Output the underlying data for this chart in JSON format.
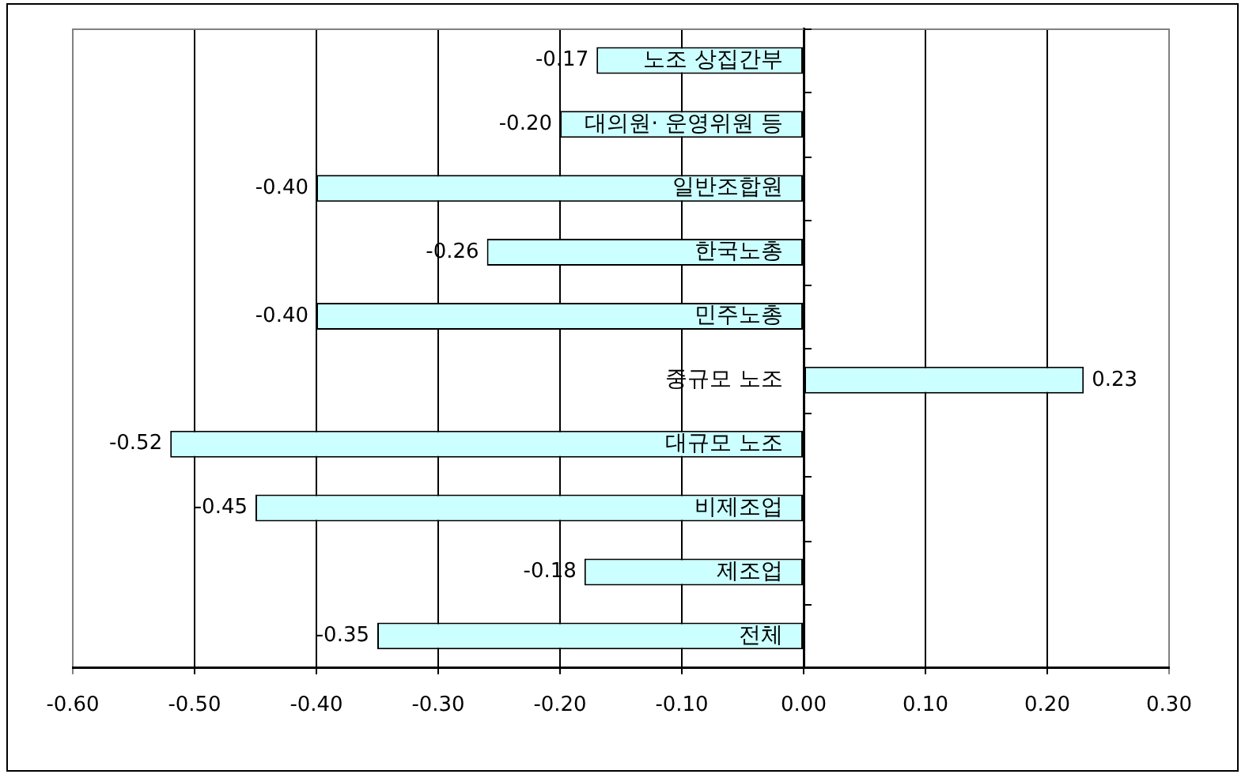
{
  "chart_data": {
    "type": "bar",
    "orientation": "horizontal",
    "categories": [
      "노조 상집간부",
      "대의원· 운영위원 등",
      "일반조합원",
      "한국노총",
      "민주노총",
      "중규모 노조",
      "대규모 노조",
      "비제조업",
      "제조업",
      "전체"
    ],
    "values": [
      -0.17,
      -0.2,
      -0.4,
      -0.26,
      -0.4,
      0.23,
      -0.52,
      -0.45,
      -0.18,
      -0.35
    ],
    "value_labels": [
      "-0.17",
      "-0.20",
      "-0.40",
      "-0.26",
      "-0.40",
      "0.23",
      "-0.52",
      "-0.45",
      "-0.18",
      "-0.35"
    ],
    "color": "#ccffff",
    "xlim": [
      -0.6,
      0.3
    ],
    "xticks": [
      {
        "value": -0.6,
        "label": "-0.60"
      },
      {
        "value": -0.5,
        "label": "-0.50"
      },
      {
        "value": -0.4,
        "label": "-0.40"
      },
      {
        "value": -0.3,
        "label": "-0.30"
      },
      {
        "value": -0.2,
        "label": "-0.20"
      },
      {
        "value": -0.1,
        "label": "-0.10"
      },
      {
        "value": 0,
        "label": "0.00"
      },
      {
        "value": 0.1,
        "label": "0.10"
      },
      {
        "value": 0.2,
        "label": "0.20"
      },
      {
        "value": 0.3,
        "label": "0.30"
      }
    ],
    "grid": "x"
  }
}
